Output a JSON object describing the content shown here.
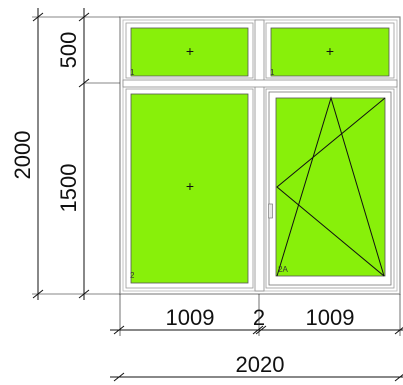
{
  "dimensions": {
    "total_height": "2000",
    "top_height": "500",
    "bottom_height": "1500",
    "left_width": "1009",
    "mullion_width": "2",
    "right_width": "1009",
    "total_width": "2020"
  },
  "sash_labels": {
    "top_left": "1",
    "top_right": "1",
    "bottom_left": "2",
    "bottom_right": "2A"
  },
  "colors": {
    "glass": "#88f00a",
    "frame": "#ffffff",
    "frame_stroke": "#8a8a8a",
    "lines": "#111111"
  }
}
